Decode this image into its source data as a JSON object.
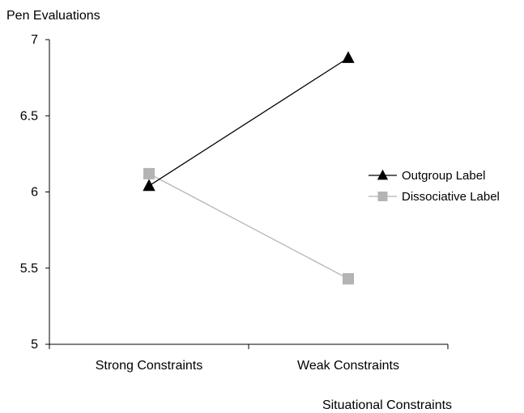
{
  "chart_data": {
    "type": "line",
    "ylabel": "Pen Evaluations",
    "xlabel": "Situational Constraints",
    "categories": [
      "Strong Constraints",
      "Weak Constraints"
    ],
    "ylim": [
      5,
      7
    ],
    "yticks": [
      5,
      5.5,
      6,
      6.5,
      7
    ],
    "yticklabels": [
      "5",
      "5.5",
      "6",
      "6.5",
      "7"
    ],
    "grid": false,
    "legend_position": "right",
    "series": [
      {
        "name": "Outgroup Label",
        "values": [
          6.04,
          6.88
        ],
        "color": "#000000",
        "marker": "triangle"
      },
      {
        "name": "Dissociative Label",
        "values": [
          6.12,
          5.43
        ],
        "color": "#b4b4b4",
        "marker": "square"
      }
    ]
  }
}
